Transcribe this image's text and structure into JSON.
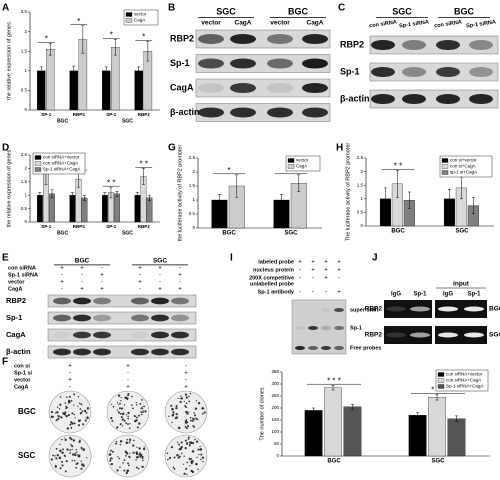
{
  "chart_data": [
    {
      "type": "bar",
      "panel": "A",
      "ylabel": "the relative expression of genes",
      "categories": [
        "SP-1",
        "RBP2",
        "SP-1",
        "RBP2"
      ],
      "groups": [
        "BGC",
        "SGC"
      ],
      "series": [
        {
          "name": "vector",
          "color": "#000000",
          "values": [
            1,
            1,
            1,
            1
          ],
          "errors": [
            0.1,
            0.12,
            0.1,
            0.1
          ]
        },
        {
          "name": "CagA",
          "color": "#cccccc",
          "values": [
            1.55,
            1.8,
            1.6,
            1.5
          ],
          "errors": [
            0.15,
            0.35,
            0.2,
            0.25
          ]
        }
      ],
      "ylim": [
        0,
        2.5
      ],
      "yticks": [
        0,
        0.5,
        1,
        1.5,
        2,
        2.5
      ],
      "legend": "upper right",
      "significance": [
        "*",
        "*",
        "*",
        "*"
      ]
    },
    {
      "type": "bar",
      "panel": "D",
      "ylabel": "the relative expression of genes",
      "categories": [
        "SP-1",
        "RBP2",
        "SP-1",
        "RBP2"
      ],
      "groups": [
        "BGC",
        "SGC"
      ],
      "series": [
        {
          "name": "con siRNA+vector",
          "color": "#000000",
          "values": [
            1,
            1,
            1,
            1
          ],
          "errors": [
            0.1,
            0.1,
            0.1,
            0.1
          ]
        },
        {
          "name": "con siRNA+CagA",
          "color": "#d9d9d9",
          "values": [
            1.8,
            1.6,
            1.1,
            1.7
          ],
          "errors": [
            0.4,
            0.3,
            0.2,
            0.3
          ]
        },
        {
          "name": "Sp-1 siRNA+CagA",
          "color": "#7f7f7f",
          "values": [
            1.05,
            0.9,
            1.05,
            0.9
          ],
          "errors": [
            0.15,
            0.1,
            0.1,
            0.1
          ]
        }
      ],
      "ylim": [
        0,
        2.5
      ],
      "yticks": [
        0,
        0.5,
        1,
        1.5,
        2,
        2.5
      ],
      "legend": "upper left",
      "significance": [
        "* *",
        "* *",
        "* *",
        "* *"
      ]
    },
    {
      "type": "bar",
      "panel": "G",
      "ylabel": "the luciferase activity of RBP2 promoter",
      "categories": [
        "BGC",
        "SGC"
      ],
      "series": [
        {
          "name": "vector",
          "color": "#000000",
          "values": [
            1,
            1
          ],
          "errors": [
            0.2,
            0.2
          ]
        },
        {
          "name": "CagA",
          "color": "#cccccc",
          "values": [
            1.5,
            1.6
          ],
          "errors": [
            0.4,
            0.3
          ]
        }
      ],
      "ylim": [
        0,
        2.5
      ],
      "yticks": [
        0,
        0.5,
        1,
        1.5,
        2,
        2.5
      ],
      "legend": "upper right",
      "significance": [
        "*",
        "*"
      ]
    },
    {
      "type": "bar",
      "panel": "H",
      "ylabel": "The luciferase activity of RBP2 promoter",
      "categories": [
        "BGC",
        "SGC"
      ],
      "series": [
        {
          "name": "con si+vector",
          "color": "#000000",
          "values": [
            1,
            1
          ],
          "errors": [
            0.4,
            0.35
          ]
        },
        {
          "name": "con si+CagA",
          "color": "#d9d9d9",
          "values": [
            1.55,
            1.4
          ],
          "errors": [
            0.5,
            0.4
          ]
        },
        {
          "name": "sp-1 si+CagA",
          "color": "#7f7f7f",
          "values": [
            0.95,
            0.75
          ],
          "errors": [
            0.3,
            0.3
          ]
        }
      ],
      "ylim": [
        0,
        2.5
      ],
      "yticks": [
        0,
        0.5,
        1,
        1.5,
        2,
        2.5
      ],
      "legend": "upper right",
      "significance": [
        "* *",
        "* *"
      ]
    },
    {
      "type": "bar",
      "ylabel": "The number of clones",
      "categories": [
        "BGC",
        "SGC"
      ],
      "series": [
        {
          "name": "con siRNA+vector",
          "color": "#000000",
          "values": [
            190,
            170
          ],
          "errors": [
            10,
            10
          ]
        },
        {
          "name": "con siRNA+CagA",
          "color": "#d9d9d9",
          "values": [
            285,
            245
          ],
          "errors": [
            10,
            12
          ]
        },
        {
          "name": "Sp-1 siRNA+CagA",
          "color": "#555555",
          "values": [
            205,
            155
          ],
          "errors": [
            10,
            12
          ]
        }
      ],
      "ylim": [
        0,
        350
      ],
      "yticks": [
        0,
        50,
        100,
        150,
        200,
        250,
        300,
        350
      ],
      "legend": "upper right",
      "significance": [
        "* * *",
        "* * *"
      ]
    }
  ],
  "blot_B": {
    "panel": "B",
    "groups": [
      "SGC",
      "BGC"
    ],
    "lanes": [
      "vector",
      "CagA",
      "vector",
      "CagA"
    ],
    "rows": [
      "RBP2",
      "Sp-1",
      "CagA",
      "β-actin"
    ]
  },
  "blot_C": {
    "panel": "C",
    "groups": [
      "SGC",
      "BGC"
    ],
    "lanes": [
      "con siRNA",
      "Sp-1 siRNA",
      "con siRNA",
      "Sp-1 siRNA"
    ],
    "rows": [
      "RBP2",
      "Sp-1",
      "β-actin"
    ]
  },
  "blot_E": {
    "panel": "E",
    "groups": [
      "BGC",
      "SGC"
    ],
    "conditions": [
      {
        "label": "con siRNA",
        "signs": [
          "+",
          "+",
          "-",
          "+",
          "+",
          "-"
        ]
      },
      {
        "label": "Sp-1 siRNA",
        "signs": [
          "-",
          "-",
          "+",
          "-",
          "-",
          "+"
        ]
      },
      {
        "label": "vector",
        "signs": [
          "+",
          "-",
          "-",
          "+",
          "-",
          "-"
        ]
      },
      {
        "label": "CagA",
        "signs": [
          "-",
          "+",
          "+",
          "-",
          "+",
          "+"
        ]
      }
    ],
    "rows": [
      "RBP2",
      "Sp-1",
      "CagA",
      "β-actin"
    ]
  },
  "colony_F": {
    "panel": "F",
    "conditions": [
      {
        "label": "con si",
        "signs": [
          "+",
          "+",
          "-"
        ]
      },
      {
        "label": "Sp-1 si",
        "signs": [
          "-",
          "-",
          "+"
        ]
      },
      {
        "label": "vector",
        "signs": [
          "+",
          "-",
          "-"
        ]
      },
      {
        "label": "CagA",
        "signs": [
          "-",
          "+",
          "+"
        ]
      }
    ],
    "rows": [
      "BGC",
      "SGC"
    ]
  },
  "emsa_I": {
    "panel": "I",
    "conditions": [
      {
        "label": [
          "labeled probe"
        ],
        "signs": [
          "+",
          "+",
          "+",
          "+"
        ]
      },
      {
        "label": [
          "nucleus protein"
        ],
        "signs": [
          "-",
          "+",
          "+",
          "+"
        ]
      },
      {
        "label": [
          "200X competitive",
          "unlabelled probe"
        ],
        "signs": [
          "-",
          "-",
          "+",
          "-"
        ]
      },
      {
        "label": [
          "Sp-1 antibody"
        ],
        "signs": [
          "-",
          "-",
          "-",
          "+"
        ]
      }
    ],
    "bands": [
      "super-shift",
      "Sp-1",
      "Free probes"
    ]
  },
  "chip_J": {
    "panel": "J",
    "header": "input",
    "lanes": [
      "IgG",
      "Sp-1",
      "IgG",
      "Sp-1"
    ],
    "rows": [
      {
        "label": "RBP2",
        "cell": "BGC"
      },
      {
        "label": "RBP2",
        "cell": "SGC"
      }
    ]
  }
}
